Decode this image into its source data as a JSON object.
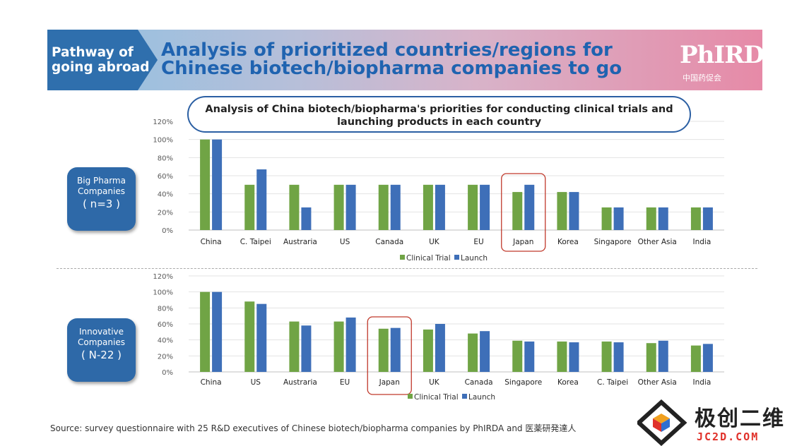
{
  "header": {
    "tag": "Pathway of going abroad",
    "title": "Analysis of prioritized countries/regions for Chinese biotech/biopharma companies to go",
    "logo": "PhIRDA",
    "logo_sub": "中国药促会"
  },
  "chart_title": "Analysis of China biotech/biopharma's priorities for conducting clinical trials and launching products in each country",
  "colors": {
    "clinical_trial": "#70a445",
    "launch": "#3e6fb8",
    "highlight": "#c0392b"
  },
  "groups": {
    "top": {
      "line1": "Big Pharma",
      "line2": "Companies",
      "n": "( n=3 )"
    },
    "bottom": {
      "line1": "Innovative",
      "line2": "Companies",
      "n": "( N-22 )"
    }
  },
  "chart_data": [
    {
      "type": "bar",
      "title": "Big Pharma Companies (n=3)",
      "categories": [
        "China",
        "C. Taipei",
        "Austraria",
        "US",
        "Canada",
        "UK",
        "EU",
        "Japan",
        "Korea",
        "Singapore",
        "Other Asia",
        "India"
      ],
      "series": [
        {
          "name": "Clinical Trial",
          "values": [
            100,
            50,
            50,
            50,
            50,
            50,
            50,
            42,
            42,
            25,
            25,
            25
          ]
        },
        {
          "name": "Launch",
          "values": [
            100,
            67,
            25,
            50,
            50,
            50,
            50,
            50,
            42,
            25,
            25,
            25
          ]
        }
      ],
      "yticks": [
        "0%",
        "20%",
        "40%",
        "60%",
        "80%",
        "100%",
        "120%"
      ],
      "ylim": [
        0,
        120
      ],
      "highlight": "Japan",
      "legend": "bottom"
    },
    {
      "type": "bar",
      "title": "Innovative Companies (N-22)",
      "categories": [
        "China",
        "US",
        "Austraria",
        "EU",
        "Japan",
        "UK",
        "Canada",
        "Singapore",
        "Korea",
        "C. Taipei",
        "Other Asia",
        "India"
      ],
      "series": [
        {
          "name": "Clinical Trial",
          "values": [
            100,
            88,
            63,
            63,
            54,
            53,
            48,
            39,
            38,
            38,
            36,
            33
          ]
        },
        {
          "name": "Launch",
          "values": [
            100,
            85,
            58,
            68,
            55,
            60,
            51,
            38,
            37,
            37,
            39,
            35
          ]
        }
      ],
      "yticks": [
        "0%",
        "20%",
        "40%",
        "60%",
        "80%",
        "100%",
        "120%"
      ],
      "ylim": [
        0,
        120
      ],
      "highlight": "Japan",
      "legend": "bottom"
    }
  ],
  "source": "Source: survey questionnaire with 25 R&D executives of Chinese biotech/biopharma companies by PhIRDA and 医薬研発達人",
  "watermark": {
    "text": "极创二维",
    "sub": "JC2D.COM"
  }
}
